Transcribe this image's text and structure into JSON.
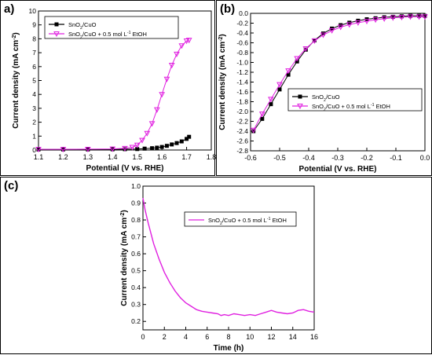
{
  "colors": {
    "pink": "#e020e0",
    "black": "#000000"
  },
  "chart_data": [
    {
      "panel": "a)",
      "type": "line",
      "xlabel": "Potential (V vs. RHE)",
      "ylabel": "Current density (mA cm",
      "ylabel_sup": "-2",
      "ylabel_end": ")",
      "xlim": [
        1.1,
        1.8
      ],
      "ylim": [
        0,
        10
      ],
      "xticks": [
        1.1,
        1.2,
        1.3,
        1.4,
        1.5,
        1.6,
        1.7,
        1.8
      ],
      "yticks": [
        0,
        1,
        2,
        3,
        4,
        5,
        6,
        7,
        8,
        9,
        10
      ],
      "legend": {
        "position": "top-left",
        "entries": [
          {
            "pre": "SnO",
            "sub": "2",
            "post": "/CuO"
          },
          {
            "pre": "SnO",
            "sub": "2",
            "post": "/CuO + 0.5 mol L",
            "sup": "-1",
            "tail": "  EtOH"
          }
        ]
      },
      "series": [
        {
          "color": "#000000",
          "marker": "square",
          "x": [
            1.1,
            1.2,
            1.3,
            1.4,
            1.45,
            1.5,
            1.53,
            1.56,
            1.58,
            1.6,
            1.62,
            1.64,
            1.66,
            1.68,
            1.7,
            1.71
          ],
          "y": [
            0.04,
            0.04,
            0.04,
            0.05,
            0.06,
            0.07,
            0.1,
            0.13,
            0.17,
            0.22,
            0.3,
            0.4,
            0.5,
            0.62,
            0.8,
            0.95
          ]
        },
        {
          "color": "#e020e0",
          "marker": "triangle-down",
          "x": [
            1.1,
            1.2,
            1.3,
            1.4,
            1.45,
            1.48,
            1.5,
            1.52,
            1.54,
            1.56,
            1.58,
            1.6,
            1.62,
            1.64,
            1.66,
            1.68,
            1.7,
            1.71
          ],
          "y": [
            0.05,
            0.05,
            0.06,
            0.08,
            0.12,
            0.2,
            0.35,
            0.7,
            1.2,
            1.9,
            2.9,
            4.0,
            5.1,
            6.1,
            6.9,
            7.5,
            7.85,
            7.9
          ]
        }
      ]
    },
    {
      "panel": "(b)",
      "type": "line",
      "xlabel": "Potential (V vs. RHE)",
      "ylabel": "Current density (mA cm",
      "ylabel_sup": "-2",
      "ylabel_end": ")",
      "xlim": [
        -0.6,
        0.0
      ],
      "ylim": [
        -2.8,
        0.0
      ],
      "xticks": [
        -0.6,
        -0.5,
        -0.4,
        -0.3,
        -0.2,
        -0.1,
        0.0
      ],
      "yticks": [
        0.0,
        -0.2,
        -0.4,
        -0.6,
        -0.8,
        -1.0,
        -1.2,
        -1.4,
        -1.6,
        -1.8,
        -2.0,
        -2.2,
        -2.4,
        -2.6,
        -2.8
      ],
      "legend": {
        "position": "center-right",
        "entries": [
          {
            "pre": "SnO",
            "sub": "2",
            "post": "/CuO"
          },
          {
            "pre": "SnO",
            "sub": "2",
            "post": "/CuO + 0.5 mol L",
            "sup": "-1",
            "tail": "  EtOH"
          }
        ]
      },
      "series": [
        {
          "color": "#000000",
          "marker": "square",
          "x": [
            -0.59,
            -0.56,
            -0.53,
            -0.5,
            -0.47,
            -0.44,
            -0.41,
            -0.38,
            -0.35,
            -0.32,
            -0.29,
            -0.26,
            -0.23,
            -0.2,
            -0.17,
            -0.14,
            -0.11,
            -0.08,
            -0.05,
            -0.02,
            0.0
          ],
          "y": [
            -2.4,
            -2.15,
            -1.85,
            -1.55,
            -1.25,
            -0.98,
            -0.74,
            -0.55,
            -0.41,
            -0.31,
            -0.24,
            -0.19,
            -0.15,
            -0.12,
            -0.1,
            -0.08,
            -0.07,
            -0.06,
            -0.05,
            -0.05,
            -0.05
          ]
        },
        {
          "color": "#e020e0",
          "marker": "triangle-down",
          "x": [
            -0.59,
            -0.56,
            -0.53,
            -0.5,
            -0.47,
            -0.44,
            -0.41,
            -0.38,
            -0.35,
            -0.32,
            -0.29,
            -0.26,
            -0.23,
            -0.2,
            -0.17,
            -0.14,
            -0.11,
            -0.08,
            -0.05,
            -0.02,
            0.0
          ],
          "y": [
            -2.38,
            -2.05,
            -1.75,
            -1.45,
            -1.17,
            -0.92,
            -0.72,
            -0.56,
            -0.44,
            -0.35,
            -0.28,
            -0.23,
            -0.19,
            -0.16,
            -0.13,
            -0.11,
            -0.09,
            -0.08,
            -0.07,
            -0.07,
            -0.07
          ]
        }
      ]
    },
    {
      "panel": "(c)",
      "type": "line",
      "xlabel": "Time (h)",
      "ylabel": "Current density (mA cm",
      "ylabel_sup": "-2",
      "ylabel_end": ")",
      "xlim": [
        0,
        16
      ],
      "ylim": [
        0.15,
        1.0
      ],
      "xticks": [
        0,
        2,
        4,
        6,
        8,
        10,
        12,
        14,
        16
      ],
      "yticks": [
        0.2,
        0.3,
        0.4,
        0.5,
        0.6,
        0.7,
        0.8,
        0.9,
        1.0
      ],
      "ytick_labels": [
        "0.2",
        "0.3",
        "0.4",
        "0.5",
        "0.6",
        "0.7",
        "0.8",
        "0.9",
        "1.0"
      ],
      "legend": {
        "position": "top-right",
        "entries": [
          {
            "pre": "SnO",
            "sub": "2",
            "post": "/CuO + 0.5 mol L",
            "sup": "-1",
            "tail": "  EtOH"
          }
        ]
      },
      "series": [
        {
          "color": "#e020e0",
          "marker": "none",
          "x": [
            0,
            0.2,
            0.5,
            1,
            1.5,
            2,
            2.5,
            3,
            3.5,
            4,
            4.5,
            5,
            5.5,
            6,
            6.5,
            7,
            7.3,
            7.6,
            8,
            8.5,
            9,
            9.5,
            10,
            10.5,
            11,
            11.5,
            12,
            12.5,
            13,
            13.5,
            14,
            14.5,
            15,
            15.5,
            16
          ],
          "y": [
            0.93,
            0.86,
            0.78,
            0.66,
            0.57,
            0.49,
            0.43,
            0.38,
            0.34,
            0.31,
            0.29,
            0.27,
            0.26,
            0.255,
            0.25,
            0.245,
            0.235,
            0.24,
            0.235,
            0.245,
            0.24,
            0.235,
            0.24,
            0.235,
            0.245,
            0.255,
            0.265,
            0.255,
            0.25,
            0.245,
            0.25,
            0.265,
            0.27,
            0.26,
            0.255
          ]
        }
      ]
    }
  ]
}
